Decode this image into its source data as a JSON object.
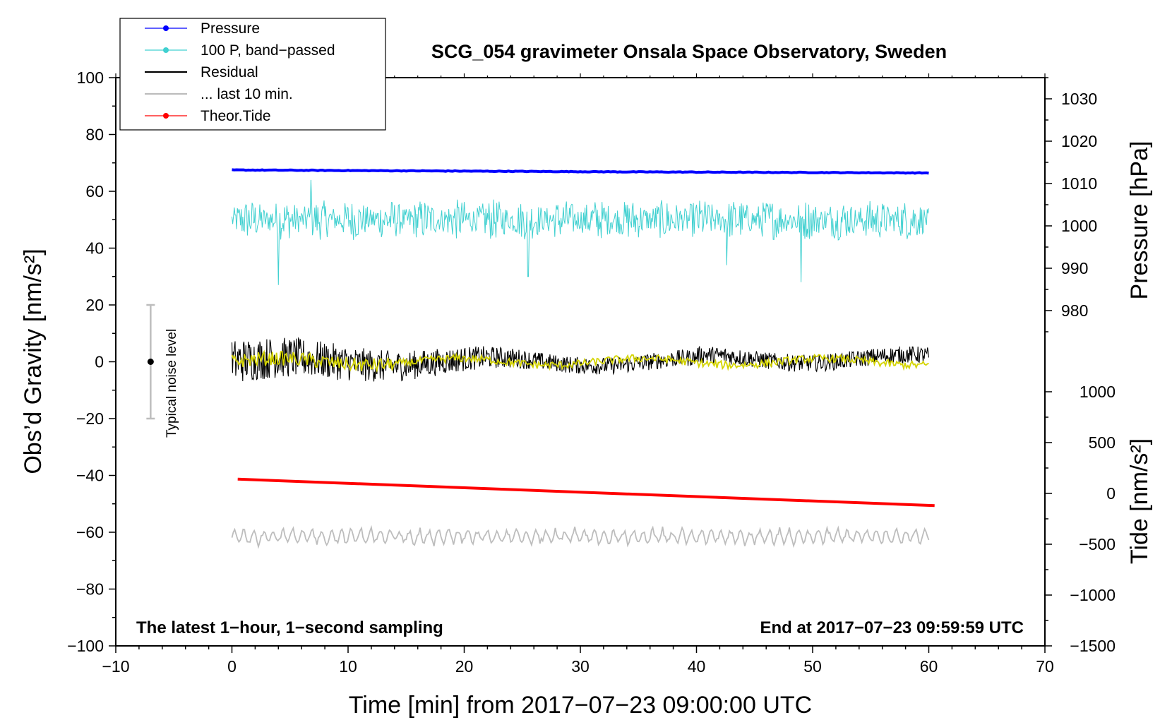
{
  "chart_data": {
    "type": "line",
    "title": "SCG_054 gravimeter Onsala Space Observatory, Sweden",
    "xlabel": "Time [min] from 2017−07−23 09:00:00 UTC",
    "ylabel_left": "Obs’d Gravity [nm/s²]",
    "ylabel_right_top": "Pressure [hPa]",
    "ylabel_right_bottom": "Tide [nm/s²]",
    "xlim": [
      -10,
      70
    ],
    "ylim_left": [
      -100,
      100
    ],
    "ylim_pressure": [
      970,
      1035
    ],
    "ylim_tide": [
      -1500,
      1000
    ],
    "x_ticks": [
      "−10",
      "0",
      "10",
      "20",
      "30",
      "40",
      "50",
      "60",
      "70"
    ],
    "y_ticks_left": [
      "100",
      "80",
      "60",
      "40",
      "20",
      "0",
      "−20",
      "−40",
      "−60",
      "−80",
      "−100"
    ],
    "y_ticks_pressure": [
      "1030",
      "1020",
      "1010",
      "1000",
      "990",
      "980"
    ],
    "y_ticks_tide": [
      "1000",
      "500",
      "0",
      "−500",
      "−1000",
      "−1500"
    ],
    "grid": false,
    "legend_position": "top-left",
    "legend": [
      {
        "label": "Pressure",
        "color": "#0000ff",
        "marker": "dot"
      },
      {
        "label": "100 P, band−passed",
        "color": "#40d0d0",
        "marker": "dot"
      },
      {
        "label": "Residual",
        "color": "#000000",
        "marker": "none"
      },
      {
        "label": "... last 10 min.",
        "color": "#bdbdbd",
        "marker": "none"
      },
      {
        "label": "Theor.Tide",
        "color": "#ff0000",
        "marker": "dot"
      }
    ],
    "series": [
      {
        "name": "Pressure",
        "axis": "pressure",
        "color": "#0000ff",
        "x": [
          0,
          30,
          60
        ],
        "values": [
          1013.2,
          1012.8,
          1012.5
        ]
      },
      {
        "name": "100 P, band−passed",
        "axis": "left",
        "color": "#40d0d0",
        "x": [
          0,
          60
        ],
        "center": 50,
        "amplitude": 6,
        "spikes": [
          [
            4,
            27
          ],
          [
            6.8,
            64
          ],
          [
            25.5,
            30
          ],
          [
            49,
            28
          ],
          [
            42.6,
            34
          ]
        ]
      },
      {
        "name": "Residual",
        "axis": "left",
        "color": "#000000",
        "x": [
          0,
          60
        ],
        "center": 0,
        "amplitude_start": 8,
        "amplitude_end": 3
      },
      {
        "name": "Residual (smoothed)",
        "axis": "left",
        "color": "#d4d400",
        "x": [
          0,
          60
        ],
        "center": 0,
        "amplitude": 2
      },
      {
        "name": "... last 10 min.",
        "axis": "left",
        "color": "#bdbdbd",
        "x": [
          0,
          60
        ],
        "center": -61.5,
        "amplitude": 3
      },
      {
        "name": "Theor.Tide",
        "axis": "tide",
        "color": "#ff0000",
        "x": [
          0.5,
          60.5
        ],
        "values": [
          140,
          -120
        ]
      }
    ],
    "noise_bar": {
      "x": -7,
      "low": -20,
      "high": 20,
      "center": 0,
      "label": "Typical noise level"
    },
    "annotations": {
      "bottom_left": "The latest 1−hour, 1−second sampling",
      "bottom_right": "End at 2017−07−23 09:59:59 UTC"
    }
  }
}
